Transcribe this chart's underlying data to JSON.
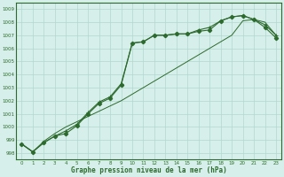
{
  "x": [
    0,
    1,
    2,
    3,
    4,
    5,
    6,
    7,
    8,
    9,
    10,
    11,
    12,
    13,
    14,
    15,
    16,
    17,
    18,
    19,
    20,
    21,
    22,
    23
  ],
  "line_diamond": [
    998.7,
    998.1,
    998.8,
    999.3,
    999.5,
    1000.1,
    1001.0,
    1001.8,
    1002.2,
    1003.2,
    1006.4,
    1006.5,
    1007.0,
    1007.0,
    1007.1,
    1007.1,
    1007.3,
    1007.4,
    1008.1,
    1008.4,
    1008.5,
    1008.2,
    1007.6,
    1006.8
  ],
  "line_plus": [
    998.7,
    998.1,
    998.8,
    999.3,
    999.7,
    1000.2,
    1001.1,
    1001.9,
    1002.3,
    1003.3,
    1006.4,
    1006.5,
    1007.0,
    1007.0,
    1007.1,
    1007.1,
    1007.4,
    1007.6,
    1008.1,
    1008.4,
    1008.5,
    1008.2,
    1007.8,
    1007.0
  ],
  "line_plain": [
    998.7,
    998.1,
    998.9,
    999.5,
    1000.0,
    1000.4,
    1000.8,
    1001.2,
    1001.6,
    1002.0,
    1002.5,
    1003.0,
    1003.5,
    1004.0,
    1004.5,
    1005.0,
    1005.5,
    1006.0,
    1006.5,
    1007.0,
    1008.1,
    1008.2,
    1008.0,
    1007.0
  ],
  "line_color": "#2d6a2d",
  "bg_color": "#d6efea",
  "grid_color": "#b0d8d0",
  "ylabel_values": [
    998,
    999,
    1000,
    1001,
    1002,
    1003,
    1004,
    1005,
    1006,
    1007,
    1008,
    1009
  ],
  "xlabel": "Graphe pression niveau de la mer (hPa)",
  "ylim": [
    997.5,
    1009.5
  ],
  "xlim": [
    -0.5,
    23.5
  ]
}
